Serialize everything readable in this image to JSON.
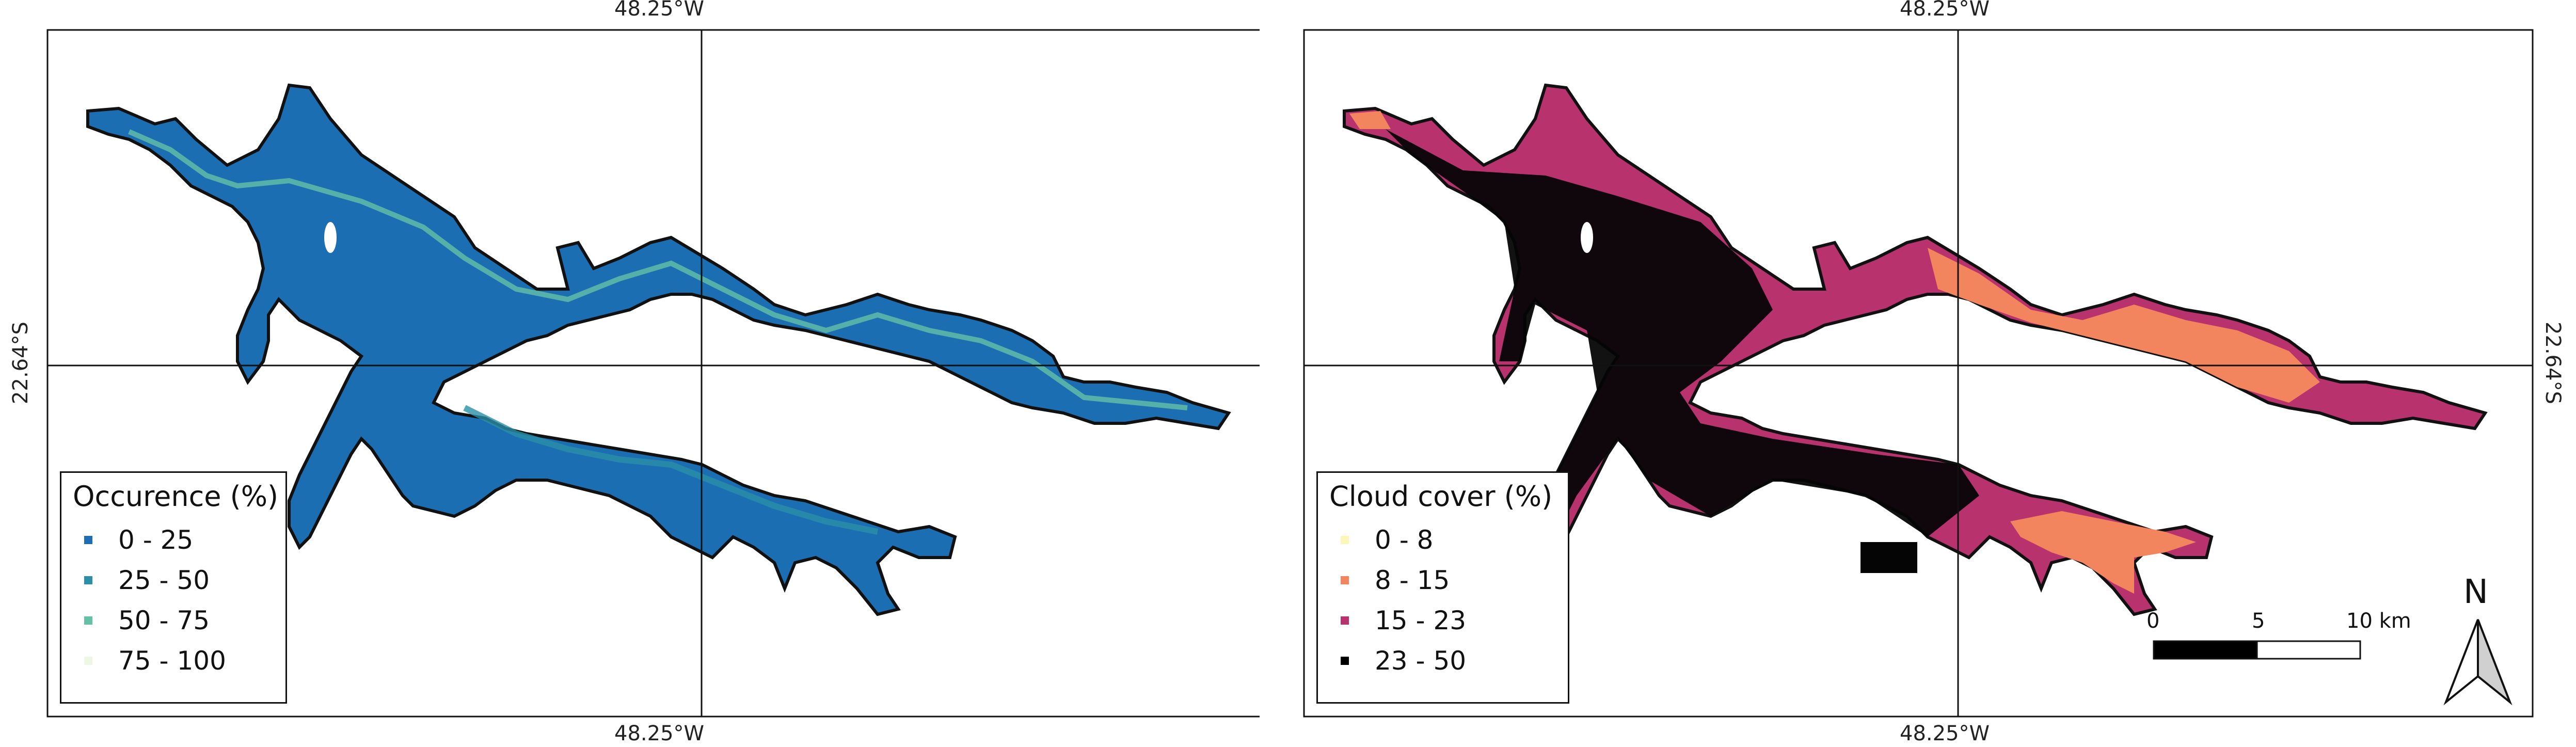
{
  "left_map": {
    "top_coord": "48.25°W",
    "bottom_coord": "48.25°W",
    "left_coord": "22.64°S",
    "legend": {
      "title": "Occurence (%)",
      "items": [
        {
          "label": "0 - 25",
          "color": "#1f6db2"
        },
        {
          "label": "25 - 50",
          "color": "#2b8fa7"
        },
        {
          "label": "50 - 75",
          "color": "#63c1a5"
        },
        {
          "label": "75 - 100",
          "color": "#eef6e4"
        }
      ]
    },
    "water_color": "#1b6eb2",
    "edge_color": "#6cc4a6"
  },
  "right_map": {
    "top_coord": "48.25°W",
    "bottom_coord": "48.25°W",
    "right_coord": "22.64°S",
    "legend": {
      "title": "Cloud cover (%)",
      "items": [
        {
          "label": "0 - 8",
          "color": "#fcf7b8"
        },
        {
          "label": "8 - 15",
          "color": "#f3855e"
        },
        {
          "label": "15 - 23",
          "color": "#b8336e"
        },
        {
          "label": "23 - 50",
          "color": "#000000"
        }
      ]
    },
    "dark_color": "#050505",
    "mid_color": "#b8336e",
    "light_color": "#f3855e"
  },
  "scale_bar": {
    "labels": [
      "0",
      "5",
      "10 km"
    ]
  },
  "north_arrow": {
    "label": "N"
  }
}
